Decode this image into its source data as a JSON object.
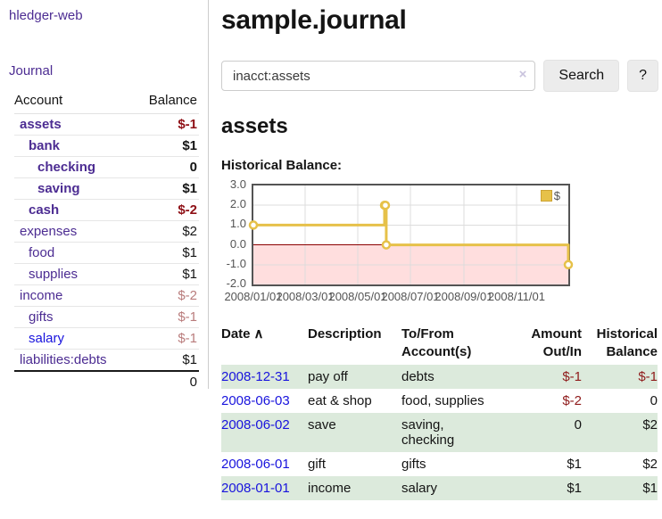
{
  "app": {
    "brand": "hledger-web"
  },
  "sidebar": {
    "journal_link": "Journal",
    "accounts_table": {
      "headers": {
        "account": "Account",
        "balance": "Balance"
      },
      "rows": [
        {
          "name": "assets",
          "balance": "$-1",
          "depth": 1,
          "emph": true
        },
        {
          "name": "bank",
          "balance": "$1",
          "depth": 2,
          "emph": true
        },
        {
          "name": "checking",
          "balance": "0",
          "depth": 3,
          "emph": true
        },
        {
          "name": "saving",
          "balance": "$1",
          "depth": 3,
          "emph": true
        },
        {
          "name": "cash",
          "balance": "$-2",
          "depth": 2,
          "emph": true
        },
        {
          "name": "expenses",
          "balance": "$2",
          "depth": 1,
          "emph": false
        },
        {
          "name": "food",
          "balance": "$1",
          "depth": 2,
          "emph": false
        },
        {
          "name": "supplies",
          "balance": "$1",
          "depth": 2,
          "emph": false
        },
        {
          "name": "income",
          "balance": "$-2",
          "depth": 1,
          "emph": false
        },
        {
          "name": "gifts",
          "balance": "$-1",
          "depth": 2,
          "emph": false
        },
        {
          "name": "salary",
          "balance": "$-1",
          "depth": 2,
          "emph": false,
          "link_state": "unvisited"
        },
        {
          "name": "liabilities:debts",
          "balance": "$1",
          "depth": 1,
          "emph": false
        }
      ],
      "total": "0"
    }
  },
  "header": {
    "title": "sample.journal"
  },
  "search": {
    "value": "inacct:assets",
    "clear_icon": "×",
    "search_button": "Search",
    "help_button": "?"
  },
  "register": {
    "heading": "assets",
    "chart_label": "Historical Balance:",
    "table": {
      "headers": [
        "Date",
        "Description",
        "To/From Account(s)",
        "Amount Out/In",
        "Historical Balance"
      ],
      "sort_indicator": "∧",
      "rows": [
        {
          "date": "2008-12-31",
          "description": "pay off",
          "accounts": "debts",
          "amount": "$-1",
          "balance": "$-1"
        },
        {
          "date": "2008-06-03",
          "description": "eat & shop",
          "accounts": "food, supplies",
          "amount": "$-2",
          "balance": "0"
        },
        {
          "date": "2008-06-02",
          "description": "save",
          "accounts": "saving, checking",
          "amount": "0",
          "balance": "$2"
        },
        {
          "date": "2008-06-01",
          "description": "gift",
          "accounts": "gifts",
          "amount": "$1",
          "balance": "$2"
        },
        {
          "date": "2008-01-01",
          "description": "income",
          "accounts": "salary",
          "amount": "$1",
          "balance": "$1"
        }
      ]
    }
  },
  "chart_data": {
    "type": "line",
    "step": true,
    "title": "Historical Balance",
    "series": [
      {
        "name": "$",
        "color": "#e6c149",
        "points": [
          [
            "2008-01-01",
            1
          ],
          [
            "2008-06-01",
            2
          ],
          [
            "2008-06-02",
            2
          ],
          [
            "2008-06-03",
            0
          ],
          [
            "2008-12-31",
            -1
          ]
        ]
      }
    ],
    "x_range": [
      "2008-01-01",
      "2008-12-31"
    ],
    "ylim": [
      -2,
      3
    ],
    "yticks": [
      "3.0",
      "2.0",
      "1.0",
      "0.0",
      "-1.0",
      "-2.0"
    ],
    "xticks": [
      "2008/01/01",
      "2008/03/01",
      "2008/05/01",
      "2008/07/01",
      "2008/09/01",
      "2008/11/01"
    ],
    "grid": true,
    "negative_region_color": "#ffdede",
    "zero_line_color": "#8b0000",
    "gridline_color": "#dcdcdc",
    "legend": {
      "label": "$",
      "position": "top-right"
    }
  }
}
